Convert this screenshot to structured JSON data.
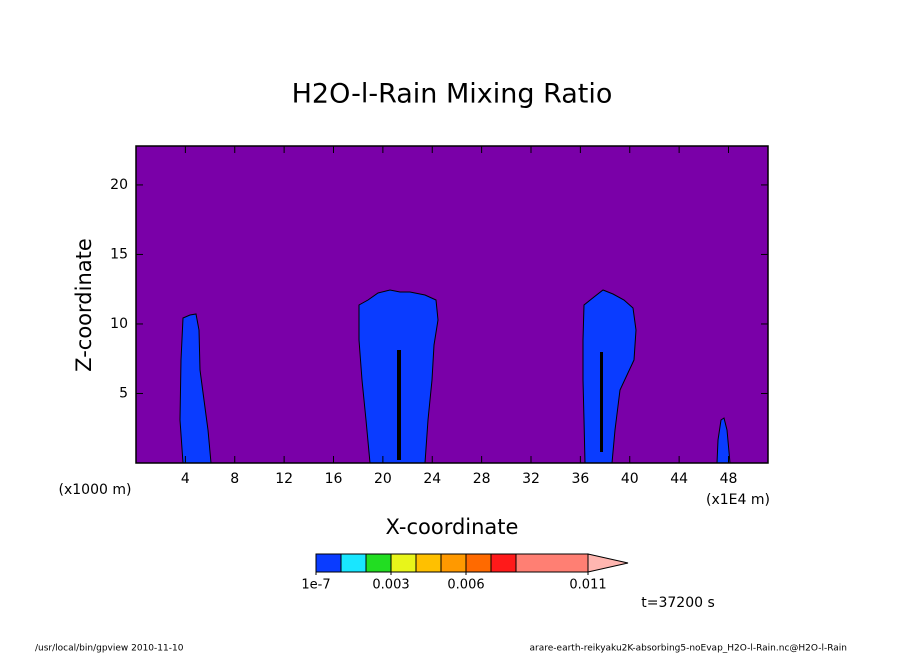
{
  "chart_data": {
    "type": "contour",
    "title": "H2O-l-Rain Mixing Ratio",
    "x_label": "X-coordinate",
    "y_label": "Z-coordinate",
    "x_unit_left": "(x1000 m)",
    "x_unit_right": "(x1E4 m)",
    "time_label": "t=37200 s",
    "xlim": [
      0,
      51.2
    ],
    "ylim": [
      0,
      22.8
    ],
    "xticks": [
      4,
      8,
      12,
      16,
      20,
      24,
      28,
      32,
      36,
      40,
      44,
      48
    ],
    "yticks": [
      5,
      10,
      15,
      20
    ],
    "background_color": "#7a00a8",
    "colorbar": {
      "levels": [
        1e-07,
        0.001,
        0.002,
        0.003,
        0.004,
        0.005,
        0.006,
        0.007,
        0.008,
        0.011
      ],
      "colors": [
        "#0a3cff",
        "#19e6ff",
        "#22dd22",
        "#e8f51a",
        "#ffc000",
        "#ff9900",
        "#ff6a00",
        "#ff1a1a",
        "#ff7f73"
      ],
      "over_color": "#ffb6b0",
      "ticks": [
        {
          "value": 1e-07,
          "label": "1e-7"
        },
        0.003,
        0.006,
        0.011
      ]
    }
  },
  "footer": {
    "left": "/usr/local/bin/gpview  2010-11-10",
    "right": "arare-earth-reikyaku2K-absorbing5-noEvap_H2O-l-Rain.nc@H2O-l-Rain"
  }
}
